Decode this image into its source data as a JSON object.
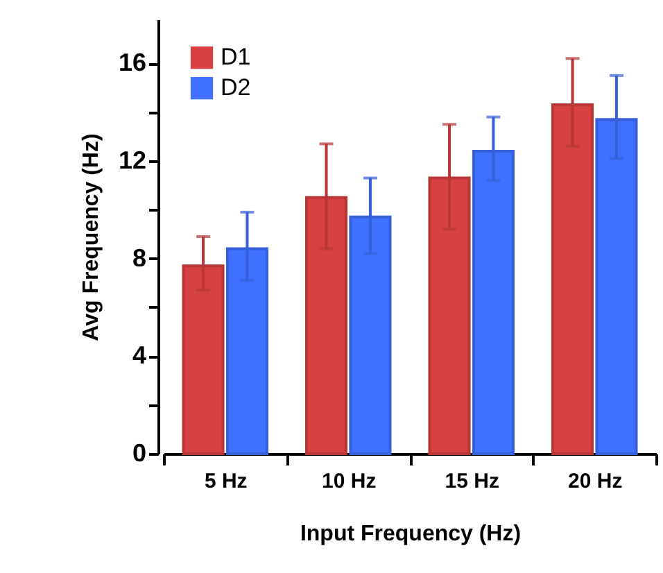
{
  "chart_data": {
    "type": "bar",
    "xlabel": "Input Frequency (Hz)",
    "ylabel": "Avg Frequency (Hz)",
    "categories": [
      "5 Hz",
      "10 Hz",
      "15 Hz",
      "20 Hz"
    ],
    "series": [
      {
        "name": "D1",
        "color": "#d94040",
        "values": [
          7.7,
          10.5,
          11.3,
          14.3
        ],
        "errors": [
          [
            6.7,
            8.9
          ],
          [
            8.4,
            12.7
          ],
          [
            9.2,
            13.5
          ],
          [
            12.6,
            16.2
          ]
        ]
      },
      {
        "name": "D2",
        "color": "#4070ff",
        "values": [
          8.4,
          9.7,
          12.4,
          13.7
        ],
        "errors": [
          [
            7.1,
            9.9
          ],
          [
            8.2,
            11.3
          ],
          [
            11.2,
            13.8
          ],
          [
            12.1,
            15.5
          ]
        ]
      }
    ],
    "ylim": [
      0,
      17.8
    ],
    "yticks": [
      0,
      {
        "value": 2,
        "label": null
      },
      4,
      {
        "value": 6,
        "label": null
      },
      8,
      {
        "value": 10,
        "label": null
      },
      12,
      {
        "value": 14,
        "label": null
      },
      16
    ],
    "grid": false,
    "legend": "top left"
  }
}
